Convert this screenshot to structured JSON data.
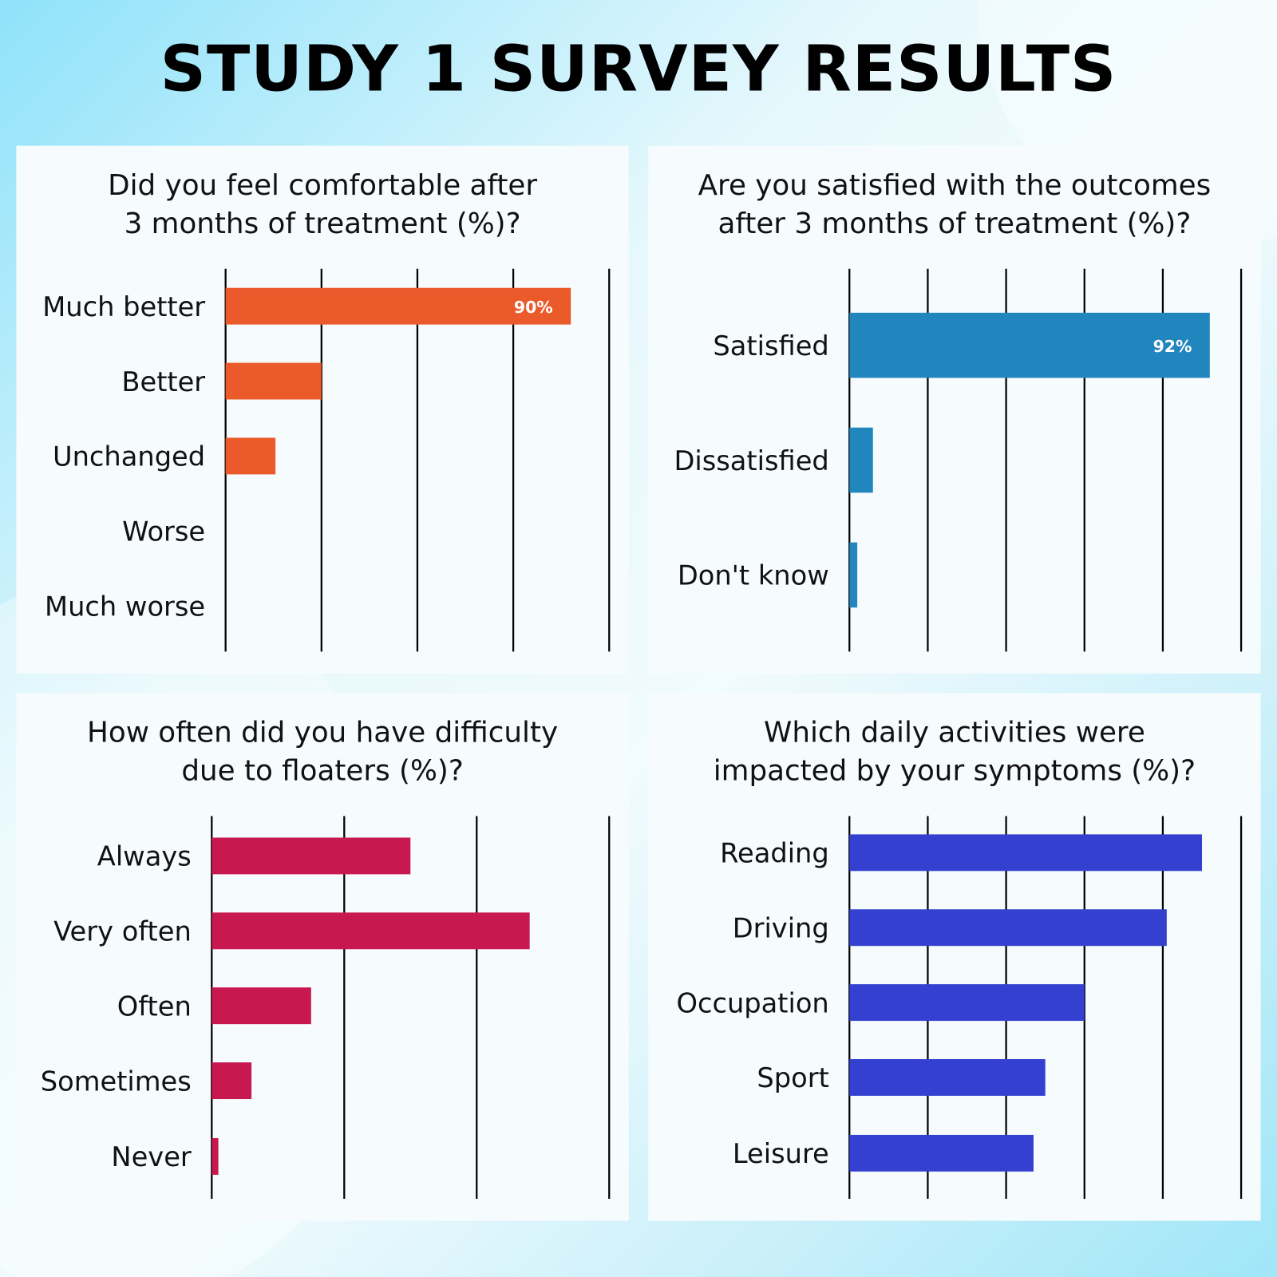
{
  "title": "STUDY 1 SURVEY RESULTS",
  "chart_data": [
    {
      "type": "bar",
      "orientation": "horizontal",
      "title": "Did you feel comfortable after 3 months of treatment (%)?",
      "categories": [
        "Much better",
        "Better",
        "Unchanged",
        "Worse",
        "Much worse"
      ],
      "values": [
        90,
        25,
        13,
        0,
        0
      ],
      "data_labels": [
        "90%",
        "",
        "",
        "",
        ""
      ],
      "xlim": [
        0,
        100
      ],
      "grid": true,
      "color": "#eb5a2b"
    },
    {
      "type": "bar",
      "orientation": "horizontal",
      "title": "Are you satisfied with the outcomes after 3 months of treatment (%)?",
      "categories": [
        "Satisfied",
        "Dissatisfied",
        "Don't know"
      ],
      "values": [
        92,
        6,
        2
      ],
      "data_labels": [
        "92%",
        "",
        ""
      ],
      "xlim": [
        0,
        100
      ],
      "grid": true,
      "color": "#2186bd"
    },
    {
      "type": "bar",
      "orientation": "horizontal",
      "title": "How often did you have difficulty due to floaters (%)?",
      "categories": [
        "Always",
        "Very often",
        "Often",
        "Sometimes",
        "Never"
      ],
      "values": [
        30,
        48,
        15,
        6,
        1
      ],
      "data_labels": [
        "",
        "",
        "",
        "",
        ""
      ],
      "xlim": [
        0,
        60
      ],
      "grid": true,
      "color": "#c81850"
    },
    {
      "type": "bar",
      "orientation": "horizontal",
      "title": "Which daily activities were impacted by your symptoms (%)?",
      "categories": [
        "Reading",
        "Driving",
        "Occupation",
        "Sport",
        "Leisure"
      ],
      "values": [
        90,
        81,
        60,
        50,
        47
      ],
      "data_labels": [
        "",
        "",
        "",
        "",
        ""
      ],
      "xlim": [
        0,
        100
      ],
      "grid": true,
      "color": "#3340d0"
    }
  ],
  "panels": [
    {
      "title_line1": "Did you feel comfortable after",
      "title_line2": "3 months of treatment (%)?"
    },
    {
      "title_line1": "Are you satisfied with the outcomes",
      "title_line2": "after 3 months of treatment (%)?"
    },
    {
      "title_line1": "How often did you have difficulty",
      "title_line2": "due to floaters (%)?"
    },
    {
      "title_line1": "Which daily activities were",
      "title_line2": "impacted by your symptoms (%)?"
    }
  ]
}
